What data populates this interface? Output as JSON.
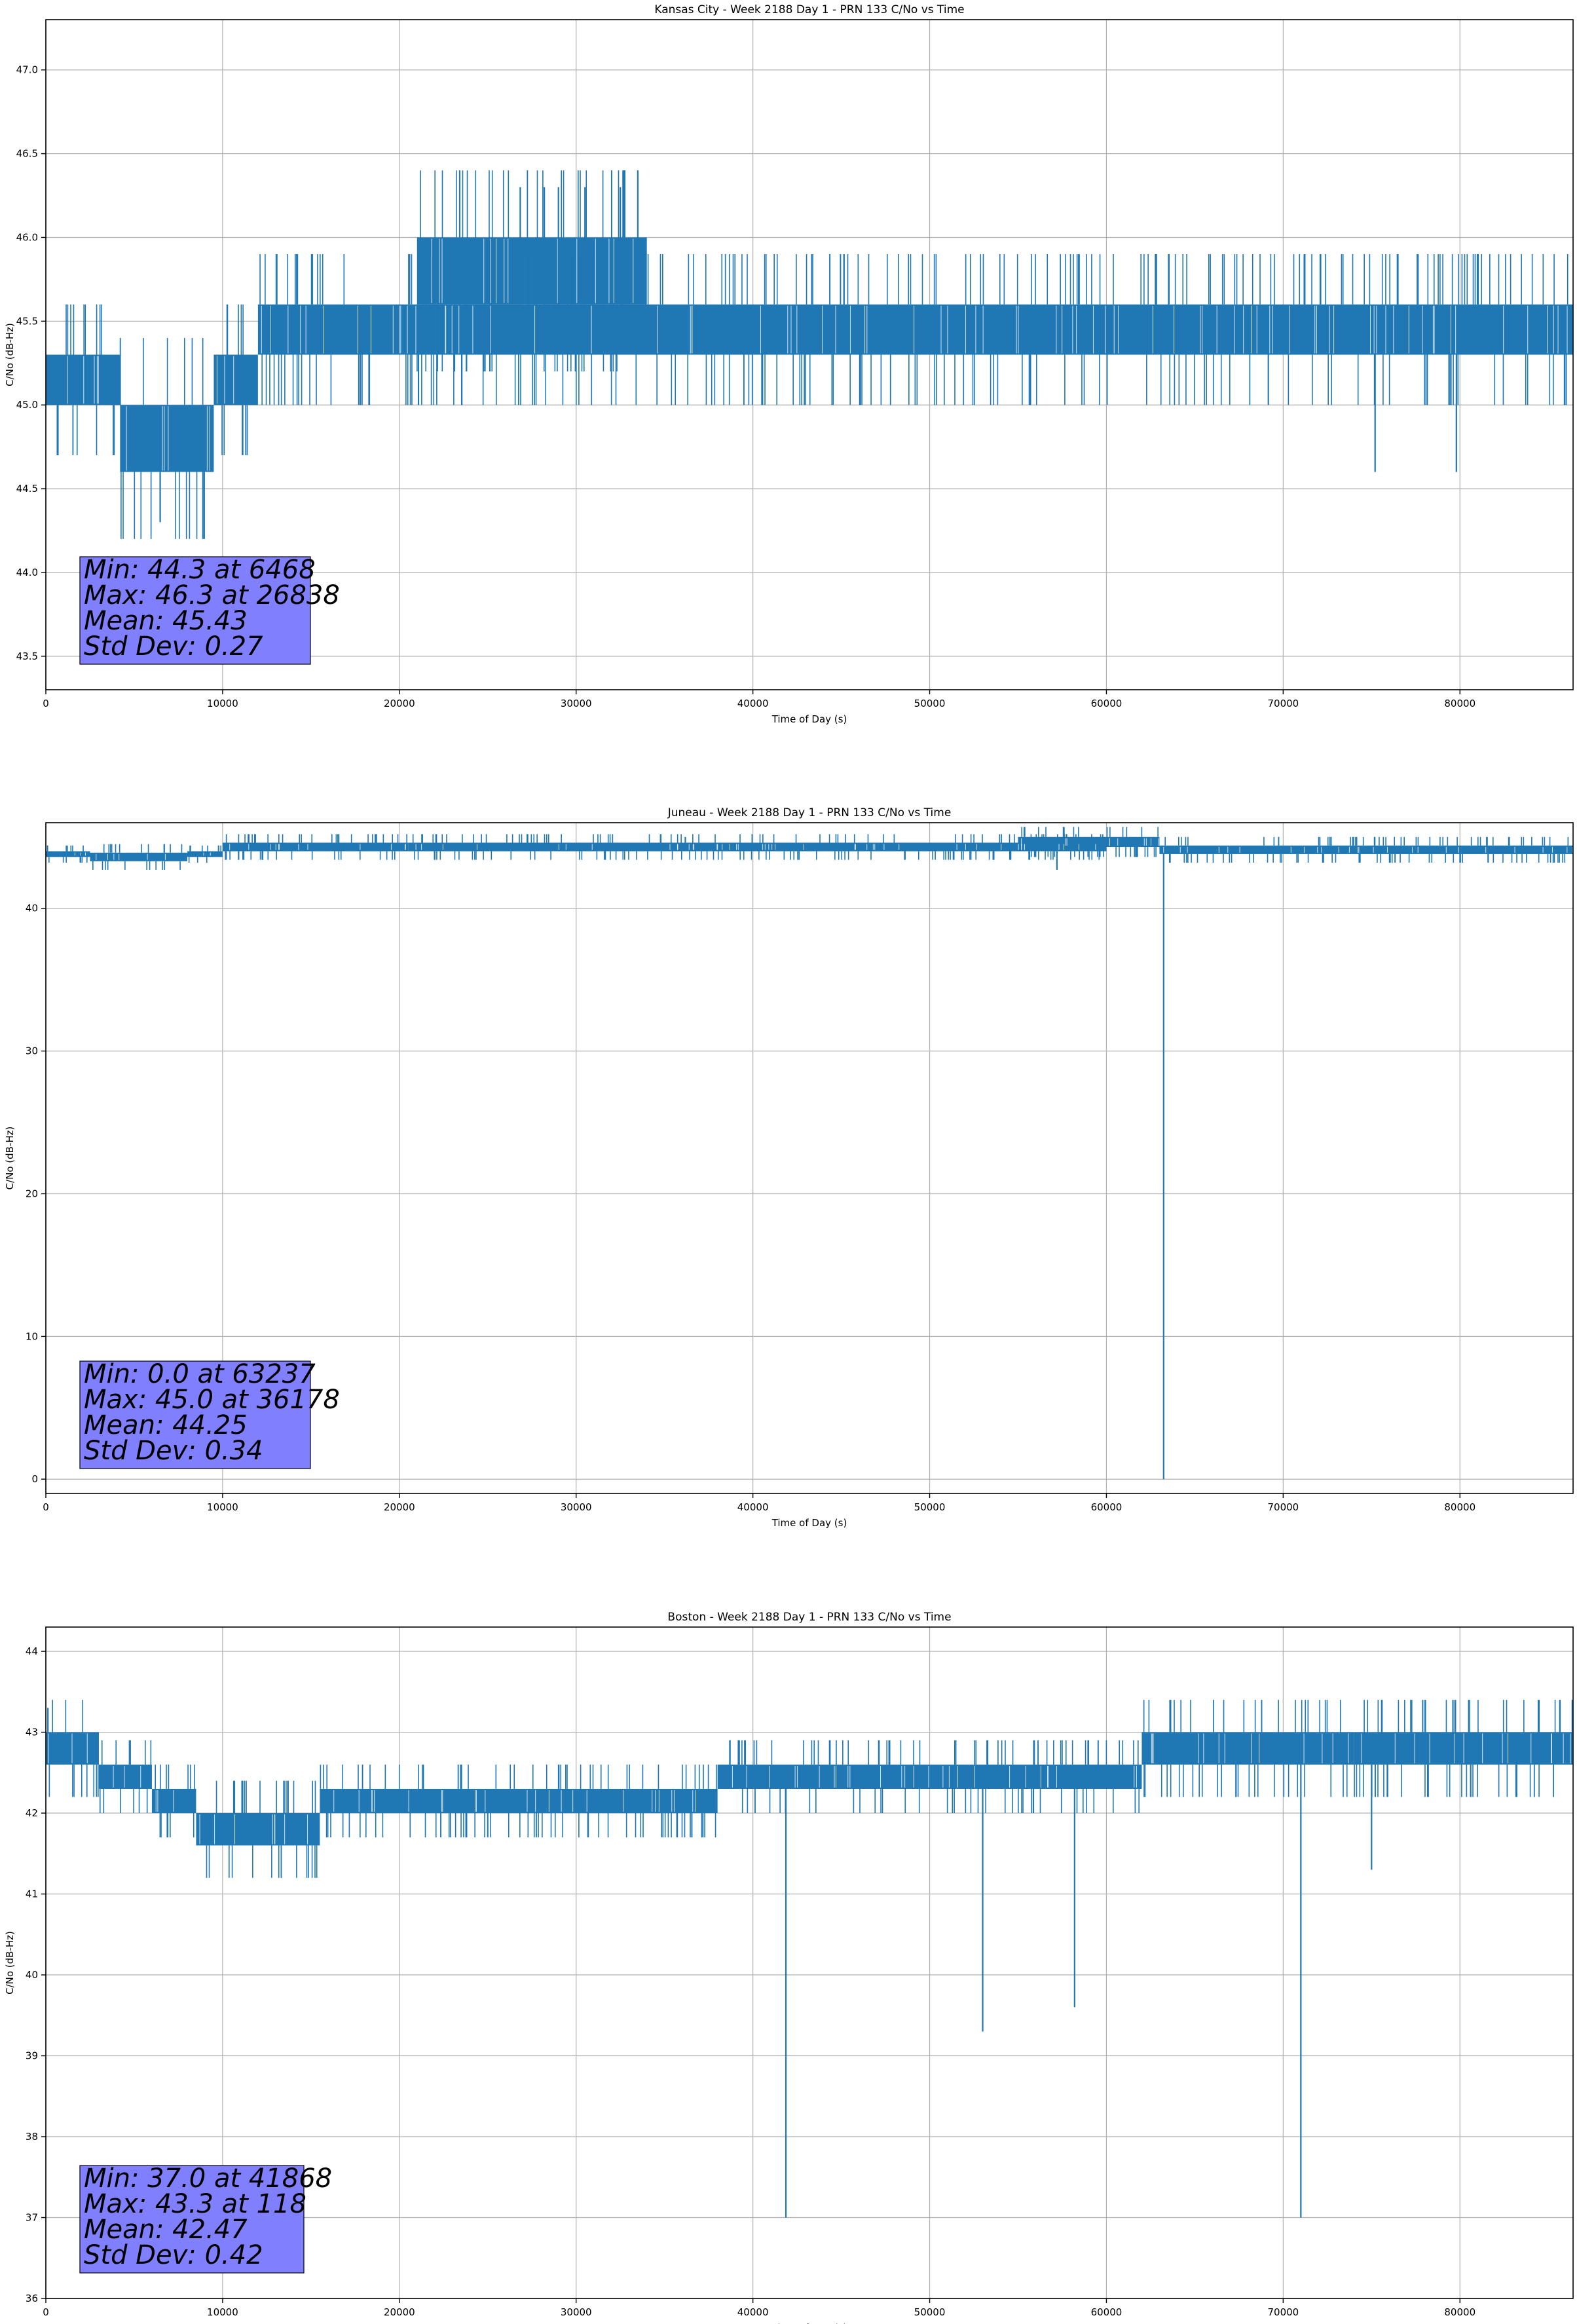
{
  "chart_data": [
    {
      "type": "line",
      "title": "Kansas City - Week 2188 Day 1 - PRN 133 C/No vs Time",
      "xlabel": "Time of Day (s)",
      "ylabel": "C/No (dB-Hz)",
      "xlim": [
        0,
        86400
      ],
      "ylim": [
        43.3,
        47.3
      ],
      "x_ticks": [
        0,
        10000,
        20000,
        30000,
        40000,
        50000,
        60000,
        70000,
        80000
      ],
      "x_tick_labels": [
        "0",
        "10000",
        "20000",
        "30000",
        "40000",
        "50000",
        "60000",
        "70000",
        "80000"
      ],
      "y_ticks": [
        43.5,
        44.0,
        44.5,
        45.0,
        45.5,
        46.0,
        46.5,
        47.0
      ],
      "y_tick_labels": [
        "43.5",
        "44.0",
        "44.5",
        "45.0",
        "45.5",
        "46.0",
        "46.5",
        "47.0"
      ],
      "grid": true,
      "series_color": "#1f77b4",
      "bands": [
        {
          "x": [
            0,
            4200
          ],
          "low": 45.0,
          "high": 45.3
        },
        {
          "x": [
            4200,
            9500
          ],
          "low": 44.6,
          "high": 45.0
        },
        {
          "x": [
            9500,
            12000
          ],
          "low": 45.0,
          "high": 45.3
        },
        {
          "x": [
            12000,
            86400
          ],
          "low": 45.3,
          "high": 45.6
        },
        {
          "x": [
            21000,
            34000
          ],
          "low": 45.6,
          "high": 46.0
        }
      ],
      "spikes": [
        {
          "x": 6468,
          "y": 44.3
        },
        {
          "x": 26838,
          "y": 46.3
        },
        {
          "x": 28200,
          "y": 46.3
        },
        {
          "x": 29000,
          "y": 46.3
        },
        {
          "x": 30500,
          "y": 46.3
        },
        {
          "x": 32500,
          "y": 46.3
        },
        {
          "x": 75200,
          "y": 44.6
        },
        {
          "x": 79800,
          "y": 44.6
        },
        {
          "x": 55700,
          "y": 45.0
        }
      ],
      "stats": {
        "min": "Min: 44.3 at 6468",
        "max": "Max: 46.3 at 26838",
        "mean": "Mean: 45.43",
        "std": "Std Dev: 0.27"
      }
    },
    {
      "type": "line",
      "title": "Juneau - Week 2188 Day 1 - PRN 133 C/No vs Time",
      "xlabel": "Time of Day (s)",
      "ylabel": "C/No (dB-Hz)",
      "xlim": [
        0,
        86400
      ],
      "ylim": [
        -1,
        46
      ],
      "x_ticks": [
        0,
        10000,
        20000,
        30000,
        40000,
        50000,
        60000,
        70000,
        80000
      ],
      "x_tick_labels": [
        "0",
        "10000",
        "20000",
        "30000",
        "40000",
        "50000",
        "60000",
        "70000",
        "80000"
      ],
      "y_ticks": [
        0,
        10,
        20,
        30,
        40
      ],
      "y_tick_labels": [
        "0",
        "10",
        "20",
        "30",
        "40"
      ],
      "grid": true,
      "series_color": "#1f77b4",
      "bands": [
        {
          "x": [
            0,
            2500
          ],
          "low": 43.6,
          "high": 44.0
        },
        {
          "x": [
            2500,
            8000
          ],
          "low": 43.3,
          "high": 43.9
        },
        {
          "x": [
            8000,
            10000
          ],
          "low": 43.6,
          "high": 44.0
        },
        {
          "x": [
            10000,
            20500
          ],
          "low": 44.0,
          "high": 44.6
        },
        {
          "x": [
            20500,
            60000
          ],
          "low": 44.0,
          "high": 44.6
        },
        {
          "x": [
            55000,
            63000
          ],
          "low": 44.3,
          "high": 45.0
        },
        {
          "x": [
            63000,
            86400
          ],
          "low": 43.8,
          "high": 44.4
        }
      ],
      "spikes": [
        {
          "x": 63237,
          "y": 0.0
        },
        {
          "x": 57200,
          "y": 42.7
        },
        {
          "x": 36178,
          "y": 45.0
        }
      ],
      "stats": {
        "min": "Min: 0.0 at 63237",
        "max": "Max: 45.0 at 36178",
        "mean": "Mean: 44.25",
        "std": "Std Dev: 0.34"
      }
    },
    {
      "type": "line",
      "title": "Boston - Week 2188 Day 1 - PRN 133 C/No vs Time",
      "xlabel": "Time of Day (s)",
      "ylabel": "C/No (dB-Hz)",
      "xlim": [
        0,
        86400
      ],
      "ylim": [
        36,
        44.3
      ],
      "x_ticks": [
        0,
        10000,
        20000,
        30000,
        40000,
        50000,
        60000,
        70000,
        80000
      ],
      "x_tick_labels": [
        "0",
        "10000",
        "20000",
        "30000",
        "40000",
        "50000",
        "60000",
        "70000",
        "80000"
      ],
      "y_ticks": [
        36,
        37,
        38,
        39,
        40,
        41,
        42,
        43,
        44
      ],
      "y_tick_labels": [
        "36",
        "37",
        "38",
        "39",
        "40",
        "41",
        "42",
        "43",
        "44"
      ],
      "grid": true,
      "series_color": "#1f77b4",
      "bands": [
        {
          "x": [
            0,
            3000
          ],
          "low": 42.6,
          "high": 43.0
        },
        {
          "x": [
            3000,
            6000
          ],
          "low": 42.3,
          "high": 42.6
        },
        {
          "x": [
            6000,
            8500
          ],
          "low": 42.0,
          "high": 42.3
        },
        {
          "x": [
            8500,
            15500
          ],
          "low": 41.6,
          "high": 42.0
        },
        {
          "x": [
            15500,
            38000
          ],
          "low": 42.0,
          "high": 42.3
        },
        {
          "x": [
            38000,
            62000
          ],
          "low": 42.3,
          "high": 42.6
        },
        {
          "x": [
            62000,
            74000
          ],
          "low": 42.6,
          "high": 43.0
        },
        {
          "x": [
            74000,
            86400
          ],
          "low": 42.6,
          "high": 43.0
        }
      ],
      "spikes": [
        {
          "x": 41868,
          "y": 37.0
        },
        {
          "x": 53000,
          "y": 39.3
        },
        {
          "x": 58200,
          "y": 39.6
        },
        {
          "x": 71000,
          "y": 37.0
        },
        {
          "x": 75000,
          "y": 41.3
        },
        {
          "x": 118,
          "y": 43.3
        }
      ],
      "stats": {
        "min": "Min: 37.0 at 41868",
        "max": "Max: 43.3 at 118",
        "mean": "Mean: 42.47",
        "std": "Std Dev: 0.42"
      }
    }
  ]
}
